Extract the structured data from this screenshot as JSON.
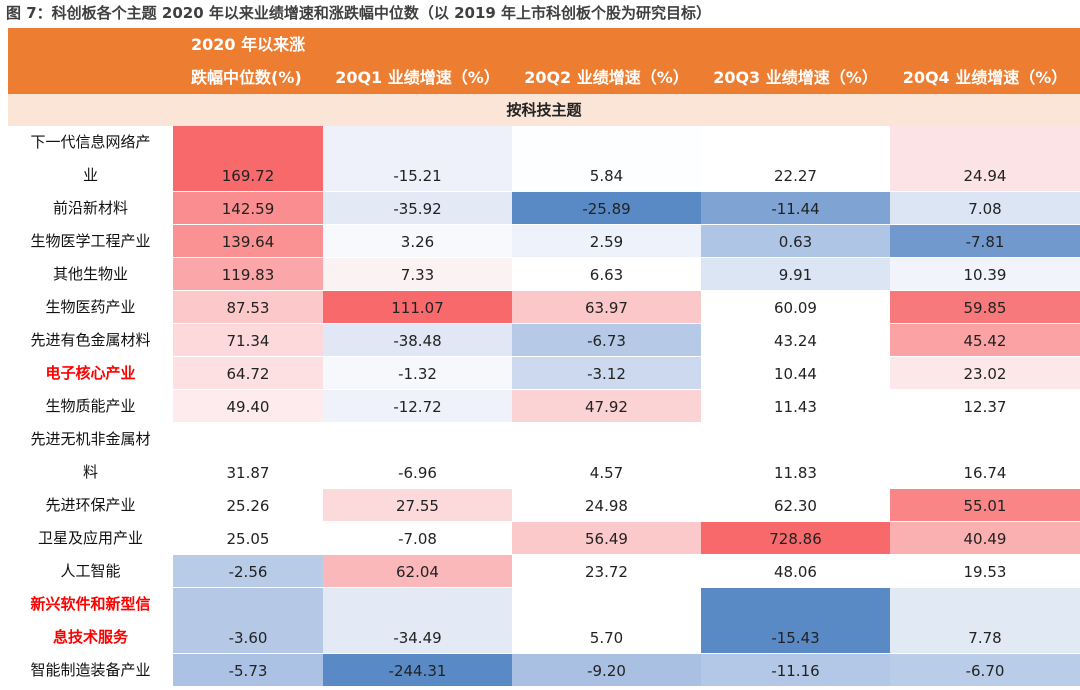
{
  "caption": "图 7：科创板各个主题 2020 年以来业绩增速和涨跌幅中位数（以 2019 年上市科创板个股为研究目标）",
  "header": {
    "col1_line1": "2020 年以来涨",
    "col1_line2": "跌幅中位数(%)",
    "q1": "20Q1 业绩增速（%）",
    "q2": "20Q2 业绩增速（%）",
    "q3": "20Q3 业绩增速（%）",
    "q4": "20Q4 业绩增速（%）"
  },
  "subheader": "按科技主题",
  "colors": {
    "header_bg": "#ED7D31",
    "subheader_bg": "#FBE5D6",
    "highlight_text": "#FF0000"
  },
  "rows": [
    {
      "name": "下一代信息网络产业",
      "highlight": false,
      "values": [
        "169.72",
        "-15.21",
        "5.84",
        "22.27",
        "24.94"
      ],
      "bg": [
        "#F8696B",
        "#EEF1FA",
        "#FDFEFF",
        "#FFFFFF",
        "#FCE3E5"
      ]
    },
    {
      "name": "前沿新材料",
      "highlight": false,
      "values": [
        "142.59",
        "-35.92",
        "-25.89",
        "-11.44",
        "7.08"
      ],
      "bg": [
        "#FA8D8F",
        "#E3E9F5",
        "#5A8AC6",
        "#7FA3D3",
        "#DCE5F3"
      ]
    },
    {
      "name": "生物医学工程产业",
      "highlight": false,
      "values": [
        "139.64",
        "3.26",
        "2.59",
        "0.63",
        "-7.81"
      ],
      "bg": [
        "#FA9193",
        "#F7F9FD",
        "#EEF2FA",
        "#AFC5E6",
        "#7299CE"
      ]
    },
    {
      "name": "其他生物业",
      "highlight": false,
      "values": [
        "119.83",
        "7.33",
        "6.63",
        "9.91",
        "10.39"
      ],
      "bg": [
        "#FBA6A8",
        "#FBF2F4",
        "#FFFFFF",
        "#DCE5F3",
        "#F1F4FA"
      ]
    },
    {
      "name": "生物医药产业",
      "highlight": false,
      "values": [
        "87.53",
        "111.07",
        "63.97",
        "60.09",
        "59.85"
      ],
      "bg": [
        "#FDC8CA",
        "#F8696B",
        "#FCC7C9",
        "#FFFFFF",
        "#F8797B"
      ]
    },
    {
      "name": "先进有色金属材料",
      "highlight": false,
      "values": [
        "71.34",
        "-38.48",
        "-6.73",
        "43.24",
        "45.42"
      ],
      "bg": [
        "#FDD9DB",
        "#E1E7F4",
        "#B6CAE7",
        "#FFFFFF",
        "#FAA2A4"
      ]
    },
    {
      "name": "电子核心产业",
      "highlight": true,
      "values": [
        "64.72",
        "-1.32",
        "-3.12",
        "10.44",
        "23.02"
      ],
      "bg": [
        "#FDE0E2",
        "#F6F8FC",
        "#CDD9EE",
        "#FFFFFF",
        "#FCE7E9"
      ]
    },
    {
      "name": "生物质能产业",
      "highlight": false,
      "values": [
        "49.40",
        "-12.72",
        "47.92",
        "11.43",
        "12.37"
      ],
      "bg": [
        "#FEEBED",
        "#EFF2FA",
        "#FCD3D5",
        "#FFFFFF",
        "#FFFFFF"
      ]
    },
    {
      "name": "先进无机非金属材料",
      "highlight": false,
      "values": [
        "31.87",
        "-6.96",
        "4.57",
        "11.83",
        "16.74"
      ],
      "bg": [
        "#FFFFFF",
        "#FFFFFF",
        "#FFFFFF",
        "#FFFFFF",
        "#FFFFFF"
      ]
    },
    {
      "name": "先进环保产业",
      "highlight": false,
      "values": [
        "25.26",
        "27.55",
        "24.98",
        "62.30",
        "55.01"
      ],
      "bg": [
        "#FFFFFF",
        "#FCD9DB",
        "#FFFFFF",
        "#FFFFFF",
        "#F98587"
      ]
    },
    {
      "name": "卫星及应用产业",
      "highlight": false,
      "values": [
        "25.05",
        "-7.08",
        "56.49",
        "728.86",
        "40.49"
      ],
      "bg": [
        "#FFFFFF",
        "#FFFFFF",
        "#FCC9CB",
        "#F8696B",
        "#FAAFB1"
      ]
    },
    {
      "name": "人工智能",
      "highlight": false,
      "values": [
        "-2.56",
        "62.04",
        "23.72",
        "48.06",
        "19.53"
      ],
      "bg": [
        "#B8CCE8",
        "#FBB8BA",
        "#FFFFFF",
        "#FFFFFF",
        "#FFFFFF"
      ]
    },
    {
      "name": "新兴软件和新型信息技术服务",
      "highlight": true,
      "values": [
        "-3.60",
        "-34.49",
        "5.70",
        "-15.43",
        "7.78"
      ],
      "bg": [
        "#B5C9E7",
        "#E4EAF5",
        "#FFFFFF",
        "#5A8AC6",
        "#E1E9F5"
      ]
    },
    {
      "name": "智能制造装备产业",
      "highlight": false,
      "values": [
        "-5.73",
        "-244.31",
        "-9.20",
        "-11.16",
        "-6.70"
      ],
      "bg": [
        "#ABC2E4",
        "#5A8AC6",
        "#A9C0E3",
        "#B3C7E6",
        "#B9CCE8"
      ]
    }
  ]
}
